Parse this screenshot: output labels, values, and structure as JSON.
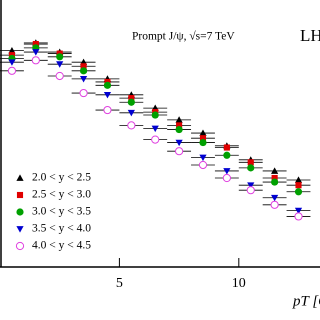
{
  "chart_data": {
    "type": "scatter",
    "title": "Prompt J/ψ, √s=7 TeV",
    "experiment": "LHCb",
    "x_label": "pT [GeV/c]",
    "x": [
      0.5,
      1.5,
      2.5,
      3.5,
      4.5,
      5.5,
      6.5,
      7.5,
      8.5,
      9.5,
      10.5,
      11.5,
      12.5
    ],
    "xerr": [
      0.5,
      0.5,
      0.5,
      0.5,
      0.5,
      0.5,
      0.5,
      0.5,
      0.5,
      0.5,
      0.5,
      0.5,
      0.5
    ],
    "series": [
      {
        "name": "2.0 < y < 2.5",
        "color": "#000000",
        "marker": "triangle-up",
        "values": [
          2.7,
          3.3,
          2.6,
          2.0,
          1.3,
          0.86,
          0.61,
          0.45,
          0.32,
          0.23,
          0.16,
          0.12,
          0.095
        ]
      },
      {
        "name": "2.5 < y < 3.0",
        "color": "#e00000",
        "marker": "square",
        "values": [
          2.4,
          3.2,
          2.5,
          1.8,
          1.2,
          0.79,
          0.55,
          0.39,
          0.28,
          0.22,
          0.15,
          0.1,
          0.083
        ]
      },
      {
        "name": "3.0 < y < 3.5",
        "color": "#00a000",
        "marker": "circle",
        "values": [
          2.2,
          2.9,
          2.3,
          1.6,
          1.1,
          0.71,
          0.51,
          0.35,
          0.25,
          0.18,
          0.13,
          0.09,
          0.07
        ]
      },
      {
        "name": "3.5 < y < 4.0",
        "color": "#0000d0",
        "marker": "triangle-down",
        "values": [
          2.0,
          2.6,
          1.9,
          1.3,
          0.86,
          0.54,
          0.36,
          0.25,
          0.17,
          0.12,
          0.083,
          0.06,
          0.043
        ]
      },
      {
        "name": "4.0 < y < 4.5",
        "color": "#e040e0",
        "marker": "open-circle",
        "values": [
          1.6,
          2.1,
          1.4,
          0.9,
          0.58,
          0.39,
          0.27,
          0.2,
          0.14,
          0.1,
          0.073,
          0.05,
          0.037
        ]
      }
    ],
    "xlim": [
      0,
      13.4
    ],
    "xticks": [
      5,
      10
    ],
    "ylim": [
      0.01,
      10
    ],
    "log_y": true,
    "legend": "lower-left"
  }
}
